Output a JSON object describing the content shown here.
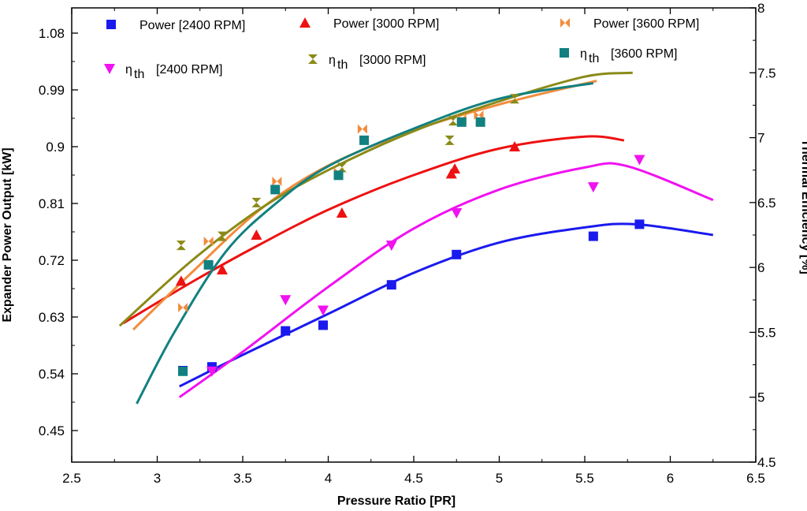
{
  "chart_data": {
    "type": "scatter",
    "title": "",
    "xlabel": "Pressure Ratio [PR]",
    "ylabel_left": "Expander Power Output [kW]",
    "ylabel_right": "Thermal Efficiency [%]",
    "xlim": [
      2.5,
      6.5
    ],
    "ylim_left": [
      0.4,
      1.12
    ],
    "ylim_right": [
      4.5,
      8.0
    ],
    "x_ticks": [
      "2.5",
      "3",
      "3.5",
      "4",
      "4.5",
      "5",
      "5.5",
      "6",
      "6.5"
    ],
    "y_left_ticks": [
      "0.45",
      "0.54",
      "0.63",
      "0.72",
      "0.81",
      "0.9",
      "0.99",
      "1.08"
    ],
    "y_right_ticks": [
      "4.5",
      "5",
      "5.5",
      "6",
      "6.5",
      "7",
      "7.5",
      "8"
    ],
    "legend_location": "top",
    "series": [
      {
        "name": "Power [2400 RPM]",
        "legend_main": "Power [2400 RPM]",
        "legend_sub": "",
        "axis": "left",
        "color": "#1a1aee",
        "marker": "square",
        "points": [
          [
            3.15,
            0.545
          ],
          [
            3.32,
            0.551
          ],
          [
            3.75,
            0.608
          ],
          [
            3.97,
            0.617
          ],
          [
            4.37,
            0.681
          ],
          [
            4.75,
            0.729
          ],
          [
            5.55,
            0.758
          ],
          [
            5.82,
            0.777
          ]
        ],
        "fit": [
          [
            3.13,
            0.52
          ],
          [
            3.5,
            0.57
          ],
          [
            4.0,
            0.635
          ],
          [
            4.5,
            0.7
          ],
          [
            5.0,
            0.748
          ],
          [
            5.5,
            0.772
          ],
          [
            5.8,
            0.777
          ],
          [
            6.25,
            0.76
          ]
        ]
      },
      {
        "name": "Power [3000 RPM]",
        "legend_main": "Power [3000 RPM]",
        "legend_sub": "",
        "axis": "left",
        "color": "#ee1111",
        "marker": "triangle-up",
        "points": [
          [
            3.14,
            0.687
          ],
          [
            3.38,
            0.705
          ],
          [
            3.58,
            0.76
          ],
          [
            4.08,
            0.795
          ],
          [
            4.72,
            0.857
          ],
          [
            4.74,
            0.865
          ],
          [
            5.09,
            0.9
          ]
        ],
        "fit": [
          [
            2.8,
            0.62
          ],
          [
            3.2,
            0.685
          ],
          [
            3.6,
            0.745
          ],
          [
            4.0,
            0.8
          ],
          [
            4.5,
            0.855
          ],
          [
            5.0,
            0.897
          ],
          [
            5.5,
            0.916
          ],
          [
            5.73,
            0.91
          ]
        ]
      },
      {
        "name": "Power [3600 RPM]",
        "legend_main": "Power [3600 RPM]",
        "legend_sub": "",
        "axis": "left",
        "color": "#f28c3c",
        "marker": "bowtie",
        "points": [
          [
            3.15,
            0.645
          ],
          [
            3.3,
            0.75
          ],
          [
            3.7,
            0.845
          ],
          [
            4.06,
            0.86
          ],
          [
            4.2,
            0.928
          ],
          [
            4.78,
            0.944
          ],
          [
            4.88,
            0.95
          ]
        ],
        "fit": [
          [
            2.86,
            0.61
          ],
          [
            3.2,
            0.7
          ],
          [
            3.6,
            0.8
          ],
          [
            4.0,
            0.87
          ],
          [
            4.5,
            0.926
          ],
          [
            5.0,
            0.967
          ],
          [
            5.5,
            1.0
          ],
          [
            5.57,
            1.004
          ]
        ]
      },
      {
        "name": "ηth [2400 RPM]",
        "legend_main": "η",
        "legend_sub": "th",
        "legend_tail": "[2400 RPM]",
        "axis": "right",
        "color": "#f012f0",
        "marker": "triangle-down",
        "points": [
          [
            3.32,
            5.2
          ],
          [
            3.75,
            5.75
          ],
          [
            3.97,
            5.67
          ],
          [
            4.37,
            6.17
          ],
          [
            4.75,
            6.42
          ],
          [
            5.55,
            6.62
          ],
          [
            5.82,
            6.83
          ]
        ],
        "fit": [
          [
            3.13,
            5.0
          ],
          [
            3.5,
            5.35
          ],
          [
            4.0,
            5.85
          ],
          [
            4.5,
            6.3
          ],
          [
            5.0,
            6.6
          ],
          [
            5.5,
            6.77
          ],
          [
            5.75,
            6.78
          ],
          [
            6.25,
            6.52
          ]
        ]
      },
      {
        "name": "ηth [3000 RPM]",
        "legend_main": "η",
        "legend_sub": "th",
        "legend_tail": "[3000 RPM]",
        "axis": "right",
        "color": "#8a8a18",
        "marker": "bowtie-v",
        "points": [
          [
            3.14,
            6.17
          ],
          [
            3.38,
            6.24
          ],
          [
            3.58,
            6.5
          ],
          [
            4.08,
            6.77
          ],
          [
            4.71,
            6.98
          ],
          [
            4.73,
            7.13
          ],
          [
            5.09,
            7.3
          ]
        ],
        "fit": [
          [
            2.78,
            5.55
          ],
          [
            3.2,
            6.05
          ],
          [
            3.6,
            6.45
          ],
          [
            4.0,
            6.75
          ],
          [
            4.5,
            7.05
          ],
          [
            5.0,
            7.28
          ],
          [
            5.5,
            7.47
          ],
          [
            5.78,
            7.5
          ]
        ]
      },
      {
        "name": "ηth [3600 RPM]",
        "legend_main": "η",
        "legend_sub": "th",
        "legend_tail": "[3600 RPM]",
        "axis": "right",
        "color": "#128080",
        "marker": "square",
        "points": [
          [
            3.15,
            5.2
          ],
          [
            3.3,
            6.02
          ],
          [
            3.69,
            6.6
          ],
          [
            4.06,
            6.71
          ],
          [
            4.21,
            6.98
          ],
          [
            4.78,
            7.12
          ],
          [
            4.89,
            7.12
          ]
        ],
        "fit": [
          [
            2.88,
            4.95
          ],
          [
            3.1,
            5.5
          ],
          [
            3.4,
            6.12
          ],
          [
            3.7,
            6.5
          ],
          [
            4.0,
            6.78
          ],
          [
            4.5,
            7.07
          ],
          [
            5.0,
            7.3
          ],
          [
            5.55,
            7.42
          ]
        ]
      }
    ]
  }
}
